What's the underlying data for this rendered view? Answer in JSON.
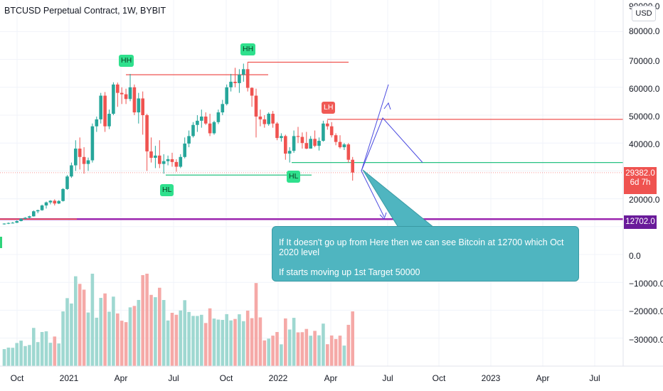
{
  "header": {
    "title": "BTCUSD Perpetual Contract, 1W, BYBIT",
    "currency": "USD"
  },
  "price_axis": {
    "labels": [
      "90000.0",
      "80000.0",
      "70000.0",
      "60000.0",
      "50000.0",
      "40000.0",
      "20000.0",
      "0.0",
      "−10000.0",
      "−20000.0",
      "−30000.0"
    ],
    "current_price": "29382.0",
    "countdown": "6d 7h",
    "level_label": "12702.0"
  },
  "time_axis": {
    "labels": [
      "Oct",
      "2021",
      "Apr",
      "Jul",
      "Oct",
      "2022",
      "Apr",
      "Jul",
      "Oct",
      "2023",
      "Apr",
      "Jul"
    ]
  },
  "pivots": {
    "hh1": "HH",
    "hh2": "HH",
    "hl1": "HL",
    "hl2": "HL",
    "lh": "LH"
  },
  "annotation": {
    "line1": "If It doesn't go up from Here then we can see Bitcoin at 12700 which Oct 2020 level",
    "line2": "If starts moving up 1st Target 50000"
  },
  "colors": {
    "up": "#26a69a",
    "down": "#ef5350",
    "volume_up": "#9fd8d1",
    "volume_down": "#f5a9a7",
    "level": "#9c27b0",
    "support": "#26c281",
    "callout": "#4fb5c0",
    "projection": "#4a4ae0"
  },
  "chart_data": {
    "type": "candlestick",
    "timeframe": "1W",
    "symbol": "BTCUSD",
    "ylim": [
      -38000,
      92000
    ],
    "candles_ohlc": [
      [
        10900,
        11200,
        10700,
        11100
      ],
      [
        11100,
        11500,
        10900,
        11300
      ],
      [
        11300,
        11700,
        11100,
        11400
      ],
      [
        11400,
        12200,
        11300,
        12000
      ],
      [
        12000,
        13000,
        11900,
        12800
      ],
      [
        12800,
        13400,
        12600,
        13200
      ],
      [
        13200,
        13900,
        13000,
        13700
      ],
      [
        13700,
        15800,
        13600,
        15500
      ],
      [
        15500,
        16100,
        14800,
        15900
      ],
      [
        15900,
        17900,
        15700,
        17600
      ],
      [
        17600,
        19000,
        16500,
        18700
      ],
      [
        18700,
        19500,
        18000,
        19300
      ],
      [
        19300,
        19800,
        17600,
        18300
      ],
      [
        18300,
        19500,
        18100,
        19200
      ],
      [
        19200,
        23800,
        19000,
        23500
      ],
      [
        23500,
        28500,
        23200,
        28000
      ],
      [
        28000,
        33000,
        27500,
        32000
      ],
      [
        32000,
        41000,
        30000,
        38000
      ],
      [
        38000,
        42000,
        30500,
        35000
      ],
      [
        35000,
        38500,
        29000,
        32500
      ],
      [
        32500,
        34800,
        30000,
        33800
      ],
      [
        33800,
        47000,
        33000,
        46000
      ],
      [
        46000,
        49500,
        44000,
        48500
      ],
      [
        48500,
        58000,
        47000,
        57000
      ],
      [
        57000,
        58300,
        44000,
        46000
      ],
      [
        46000,
        52000,
        45000,
        50500
      ],
      [
        50500,
        61800,
        50000,
        61000
      ],
      [
        61000,
        61700,
        53000,
        58000
      ],
      [
        58000,
        60000,
        54000,
        57500
      ],
      [
        57500,
        59500,
        54000,
        55800
      ],
      [
        55800,
        64800,
        55000,
        60000
      ],
      [
        60000,
        61000,
        50000,
        51000
      ],
      [
        51000,
        58000,
        47000,
        56000
      ],
      [
        56000,
        58500,
        43000,
        50000
      ],
      [
        50000,
        50500,
        30000,
        37000
      ],
      [
        37000,
        42000,
        33000,
        34700
      ],
      [
        34700,
        39000,
        31000,
        35500
      ],
      [
        35500,
        41000,
        31000,
        32500
      ],
      [
        32500,
        36000,
        29000,
        33500
      ],
      [
        33500,
        35500,
        32000,
        34200
      ],
      [
        34200,
        36500,
        31500,
        33200
      ],
      [
        33200,
        34200,
        29700,
        31500
      ],
      [
        31500,
        36000,
        31000,
        35000
      ],
      [
        35000,
        42000,
        34500,
        39800
      ],
      [
        39800,
        44500,
        38500,
        42500
      ],
      [
        42500,
        47500,
        42000,
        46500
      ],
      [
        46500,
        50000,
        44000,
        48000
      ],
      [
        48000,
        52000,
        45500,
        49500
      ],
      [
        49500,
        51000,
        46500,
        47000
      ],
      [
        47000,
        50500,
        42500,
        43500
      ],
      [
        43500,
        48000,
        43000,
        47500
      ],
      [
        47500,
        52000,
        46800,
        51000
      ],
      [
        51000,
        55500,
        50000,
        54000
      ],
      [
        54000,
        61000,
        53500,
        60000
      ],
      [
        60000,
        64800,
        58500,
        62000
      ],
      [
        62000,
        67000,
        60000,
        61500
      ],
      [
        61500,
        66500,
        58000,
        64500
      ],
      [
        64500,
        68500,
        62000,
        66500
      ],
      [
        66500,
        69000,
        58500,
        59800
      ],
      [
        59800,
        60000,
        53000,
        57000
      ],
      [
        57000,
        59500,
        42000,
        49500
      ],
      [
        49500,
        52000,
        46000,
        48500
      ],
      [
        48500,
        50000,
        45500,
        46800
      ],
      [
        46800,
        51000,
        46200,
        50500
      ],
      [
        50500,
        51500,
        45500,
        47000
      ],
      [
        47000,
        47500,
        41000,
        41800
      ],
      [
        41800,
        43500,
        40500,
        42500
      ],
      [
        42500,
        43000,
        34000,
        36200
      ],
      [
        36200,
        38500,
        33000,
        37200
      ],
      [
        37200,
        44500,
        36500,
        42500
      ],
      [
        42500,
        45800,
        40000,
        42200
      ],
      [
        42200,
        43800,
        38000,
        40000
      ],
      [
        40000,
        44000,
        37800,
        38000
      ],
      [
        38000,
        42500,
        38000,
        41500
      ],
      [
        41500,
        44500,
        38500,
        39000
      ],
      [
        39000,
        42000,
        37300,
        40800
      ],
      [
        40800,
        48000,
        40500,
        47000
      ],
      [
        47000,
        48200,
        44800,
        46000
      ],
      [
        46000,
        47500,
        42000,
        42800
      ],
      [
        42800,
        43500,
        39200,
        40400
      ],
      [
        40400,
        42800,
        38000,
        38500
      ],
      [
        38500,
        40000,
        37500,
        39500
      ],
      [
        39500,
        40000,
        33000,
        34000
      ],
      [
        34000,
        35000,
        26500,
        29400
      ]
    ],
    "levels": [
      {
        "name": "support-12702",
        "price": 12702
      },
      {
        "name": "resistance-48500",
        "price": 48500
      },
      {
        "name": "support-33000",
        "price": 33000
      }
    ]
  }
}
